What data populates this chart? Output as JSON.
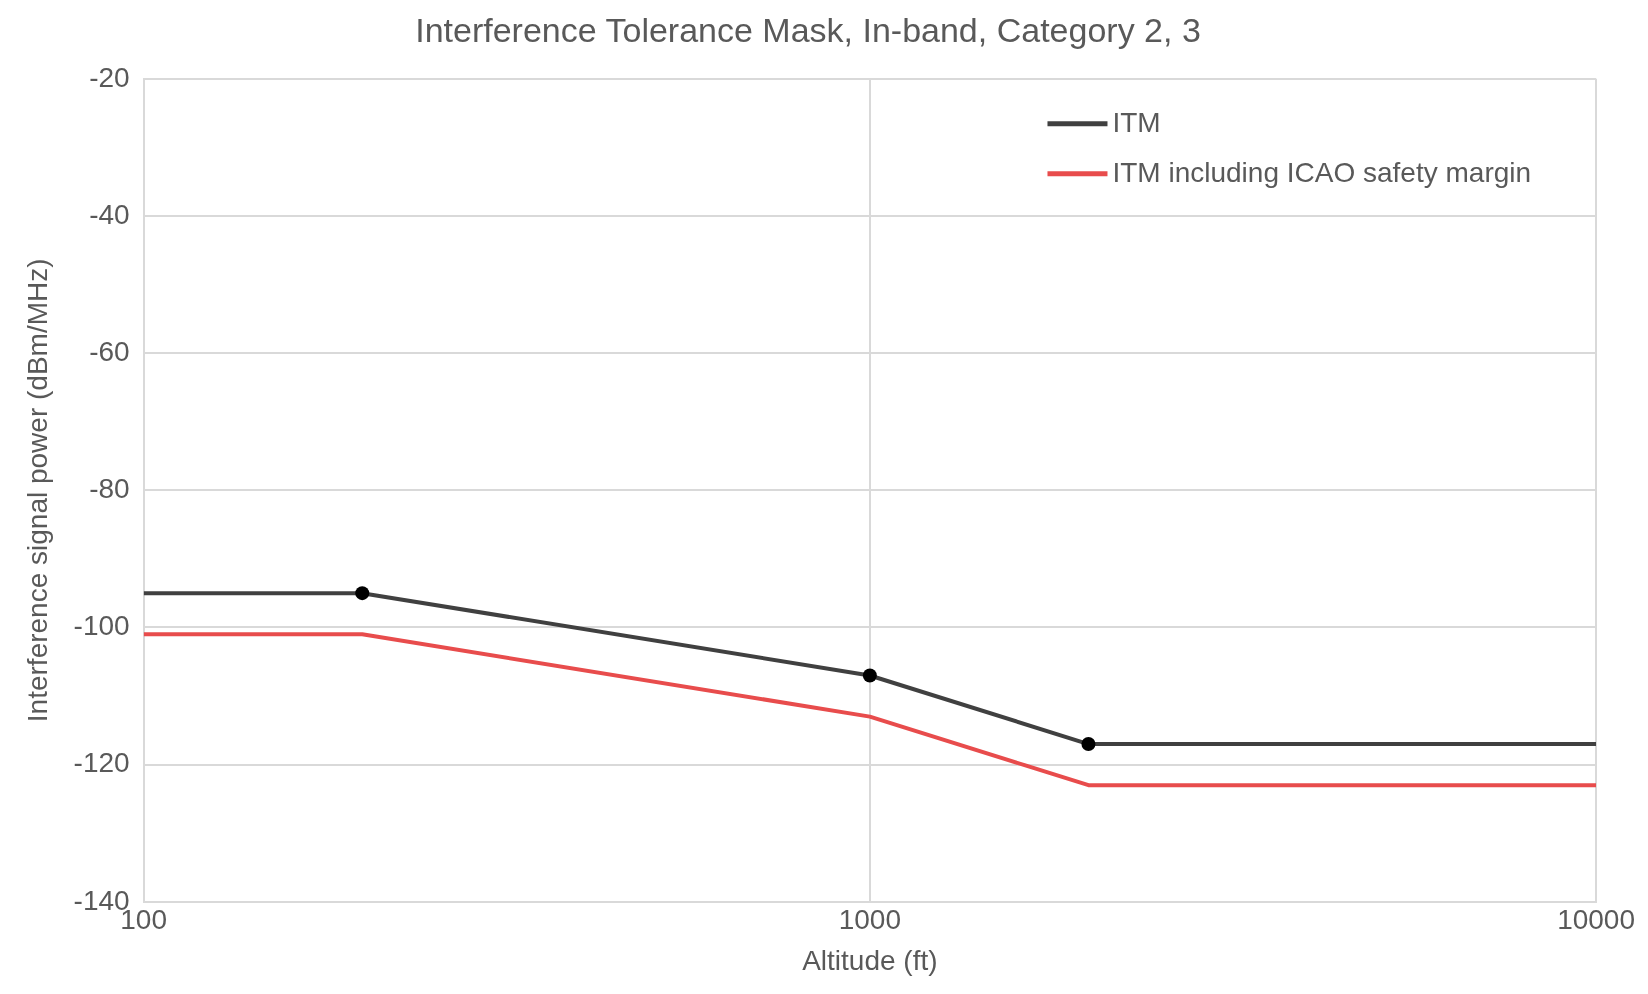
{
  "chart_data": {
    "type": "line",
    "title": "Interference Tolerance Mask, In-band, Category 2, 3",
    "xlabel": "Altitude (ft)",
    "ylabel": "Interference signal power (dBm/MHz)",
    "log": "x",
    "xlim": [
      100,
      10000
    ],
    "xticks": [
      100,
      1000,
      10000
    ],
    "ylim": [
      -140,
      -20
    ],
    "yticks": [
      -140,
      -120,
      -100,
      -80,
      -60,
      -40,
      -20
    ],
    "grid": true,
    "legend": "top right",
    "line_style": "solid",
    "series": [
      {
        "name": "ITM",
        "color": "#404040",
        "x": [
          100,
          200,
          1000,
          2000,
          10000
        ],
        "values": [
          -95,
          -95,
          -107,
          -117,
          -117
        ],
        "marker": "none"
      },
      {
        "name": "ITM including ICAO safety margin",
        "color": "#e84c4c",
        "x": [
          100,
          200,
          1000,
          2000,
          10000
        ],
        "values": [
          -101,
          -101,
          -113,
          -123,
          -123
        ],
        "marker": "none"
      },
      {
        "type": "scatter",
        "color": "#000000",
        "x": [
          200,
          1000,
          2000
        ],
        "values": [
          -95,
          -107,
          -117
        ],
        "marker": "circle"
      }
    ]
  }
}
